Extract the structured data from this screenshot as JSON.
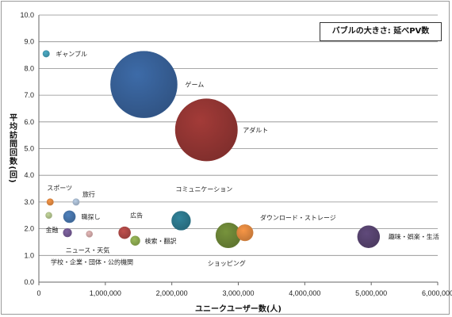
{
  "chart_data": {
    "type": "bubble",
    "xlabel": "ユニークユーザー数(人)",
    "ylabel": "平均訪問回数(回)",
    "xlim": [
      0,
      6000000
    ],
    "ylim": [
      0,
      10
    ],
    "x_ticks": [
      "0",
      "1,000,000",
      "2,000,000",
      "3,000,000",
      "4,000,000",
      "5,000,000",
      "6,000,000"
    ],
    "y_ticks": [
      "0.0",
      "1.0",
      "2.0",
      "3.0",
      "4.0",
      "5.0",
      "6.0",
      "7.0",
      "8.0",
      "9.0",
      "10.0"
    ],
    "size_legend": "バブルの大きさ: 延べPV数",
    "grid": "horizontal",
    "points": [
      {
        "label": "ギャンブル",
        "x": 110000,
        "y": 8.55,
        "size": 1,
        "color": "#4BACC6"
      },
      {
        "label": "ゲーム",
        "x": 1580000,
        "y": 7.4,
        "size": 100,
        "color": "#3D6BA8"
      },
      {
        "label": "アダルト",
        "x": 2520000,
        "y": 5.7,
        "size": 87,
        "color": "#A33B38"
      },
      {
        "label": "スポーツ",
        "x": 170000,
        "y": 3.0,
        "size": 1,
        "color": "#F79646"
      },
      {
        "label": "旅行",
        "x": 560000,
        "y": 3.0,
        "size": 1,
        "color": "#B9CDE5"
      },
      {
        "label": "金融",
        "x": 150000,
        "y": 2.5,
        "size": 0.3,
        "color": "#C3D69B"
      },
      {
        "label": "職探し",
        "x": 460000,
        "y": 2.45,
        "size": 3.2,
        "color": "#4F81BD"
      },
      {
        "label": "学校・企業・団体・公的機関",
        "x": 430000,
        "y": 1.85,
        "size": 1.6,
        "color": "#8064A2"
      },
      {
        "label": "ニュース・天気",
        "x": 760000,
        "y": 1.8,
        "size": 0.7,
        "color": "#E6B9B8"
      },
      {
        "label": "広告",
        "x": 1290000,
        "y": 1.85,
        "size": 3.2,
        "color": "#C0504D"
      },
      {
        "label": "検索・翻訳",
        "x": 1450000,
        "y": 1.55,
        "size": 2.0,
        "color": "#9BBB59"
      },
      {
        "label": "コミュニケーション",
        "x": 2140000,
        "y": 2.3,
        "size": 8.0,
        "color": "#31849B"
      },
      {
        "label": "ショッピング",
        "x": 2850000,
        "y": 1.75,
        "size": 14.0,
        "color": "#77933C"
      },
      {
        "label": "ダウンロード・ストレージ",
        "x": 3100000,
        "y": 1.85,
        "size": 6.0,
        "color": "#F79646"
      },
      {
        "label": "趣味・娯楽・生活",
        "x": 4960000,
        "y": 1.7,
        "size": 11.0,
        "color": "#604A7B"
      }
    ]
  }
}
